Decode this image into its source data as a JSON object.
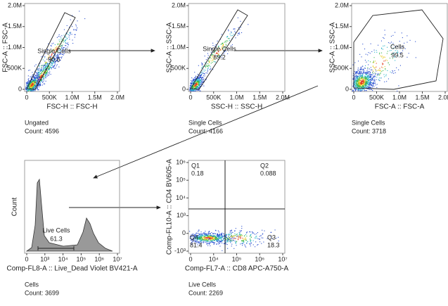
{
  "plots": [
    {
      "x_label": "FSC-H :: FSC-H",
      "y_label": "FSC-A :: FSC-A",
      "x_ticks": [
        "0",
        "500K",
        "1.0M",
        "1.5M",
        "2.0M"
      ],
      "y_ticks": [
        "0",
        "500K",
        "1.0M",
        "1.5M",
        "2.0M"
      ],
      "gate": {
        "name": "Single Cells",
        "value": "90.6"
      },
      "caption": "Ungated",
      "count": "Count: 4596"
    },
    {
      "x_label": "SSC-H :: SSC-H",
      "y_label": "SSC-A :: SSC-A",
      "x_ticks": [
        "0",
        "500K",
        "1.0M",
        "1.5M",
        "2.0M"
      ],
      "y_ticks": [
        "0",
        "500K",
        "1.0M",
        "1.5M",
        "2.0M"
      ],
      "gate": {
        "name": "Single Cells",
        "value": "89.2"
      },
      "caption": "Single Cells",
      "count": "Count: 4166"
    },
    {
      "x_label": "FSC-A :: FSC-A",
      "y_label": "SSC-A :: SSC-A",
      "x_ticks": [
        "0",
        "500K",
        "1.0M",
        "1.5M",
        "2.0M"
      ],
      "y_ticks": [
        "0",
        "500K",
        "1.0M",
        "1.5M",
        "2.0M"
      ],
      "gate": {
        "name": "Cells",
        "value": "99.5"
      },
      "caption": "Single Cells",
      "count": "Count: 3718"
    },
    {
      "x_label": "Comp-FL8-A :: Live_Dead Violet BV421-A",
      "y_label": "Count",
      "x_ticks": [
        "0",
        "10³",
        "10⁴",
        "10⁵",
        "10⁶",
        "10⁷"
      ],
      "y_ticks": [],
      "gate": {
        "name": "Live Cells",
        "value": "61.3"
      },
      "caption": "Cells",
      "count": "Count: 3699"
    },
    {
      "x_label": "Comp-FL7-A :: CD8 APC-A750-A",
      "y_label": "Comp-FL10-A :: CD4 BV605-A",
      "x_ticks": [
        "0",
        "10⁴",
        "10⁵",
        "10⁶",
        "10⁷"
      ],
      "y_ticks": [
        "-10³",
        "0",
        "10³",
        "10⁴",
        "10⁵",
        "10⁶"
      ],
      "quadrants": [
        {
          "name": "Q1",
          "value": "0.18"
        },
        {
          "name": "Q2",
          "value": "0.088"
        },
        {
          "name": "Q3",
          "value": "18.3"
        },
        {
          "name": "Q4",
          "value": "81.4"
        }
      ],
      "caption": "Live Cells",
      "count": "Count: 2269"
    }
  ]
}
